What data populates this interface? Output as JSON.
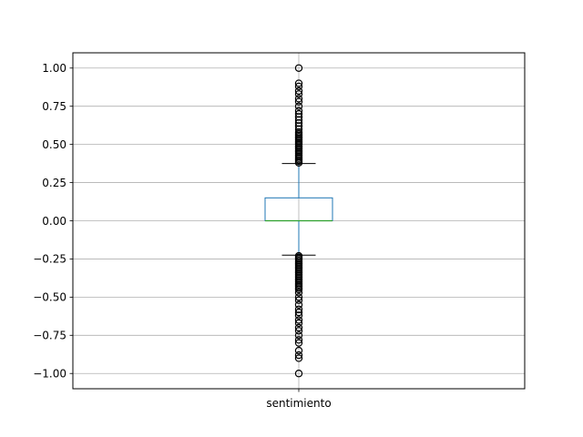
{
  "chart_data": {
    "type": "box",
    "title": "",
    "xlabel": "",
    "ylabel": "",
    "categories": [
      "sentimiento"
    ],
    "ylim": [
      -1.1,
      1.1
    ],
    "yticks": [
      -1.0,
      -0.75,
      -0.5,
      -0.25,
      0.0,
      0.25,
      0.5,
      0.75,
      1.0
    ],
    "ytick_labels": [
      "−1.00",
      "−0.75",
      "−0.50",
      "−0.25",
      "0.00",
      "0.25",
      "0.50",
      "0.75",
      "1.00"
    ],
    "grid": true,
    "series": [
      {
        "category": "sentimiento",
        "q1": 0.0,
        "median": 0.0,
        "q3": 0.15,
        "whisker_low": -0.225,
        "whisker_high": 0.375,
        "outliers": [
          1.0,
          0.9,
          0.88,
          0.85,
          0.83,
          0.8,
          0.78,
          0.75,
          0.72,
          0.7,
          0.68,
          0.66,
          0.64,
          0.62,
          0.6,
          0.58,
          0.57,
          0.56,
          0.55,
          0.54,
          0.53,
          0.52,
          0.51,
          0.5,
          0.49,
          0.48,
          0.47,
          0.46,
          0.45,
          0.44,
          0.43,
          0.42,
          0.41,
          0.4,
          0.39,
          0.38,
          -0.23,
          -0.24,
          -0.25,
          -0.26,
          -0.27,
          -0.28,
          -0.29,
          -0.3,
          -0.31,
          -0.32,
          -0.33,
          -0.34,
          -0.35,
          -0.36,
          -0.37,
          -0.38,
          -0.39,
          -0.4,
          -0.41,
          -0.42,
          -0.43,
          -0.44,
          -0.45,
          -0.47,
          -0.5,
          -0.52,
          -0.55,
          -0.58,
          -0.6,
          -0.62,
          -0.65,
          -0.67,
          -0.7,
          -0.72,
          -0.75,
          -0.78,
          -0.8,
          -0.85,
          -0.88,
          -0.9,
          -1.0
        ]
      }
    ],
    "colors": {
      "box": "#1f77b4",
      "whisker": "#1f77b4",
      "cap": "#000000",
      "median": "#2ca02c",
      "grid": "#b0b0b0",
      "flier": "#000000",
      "axes": "#000000"
    }
  }
}
